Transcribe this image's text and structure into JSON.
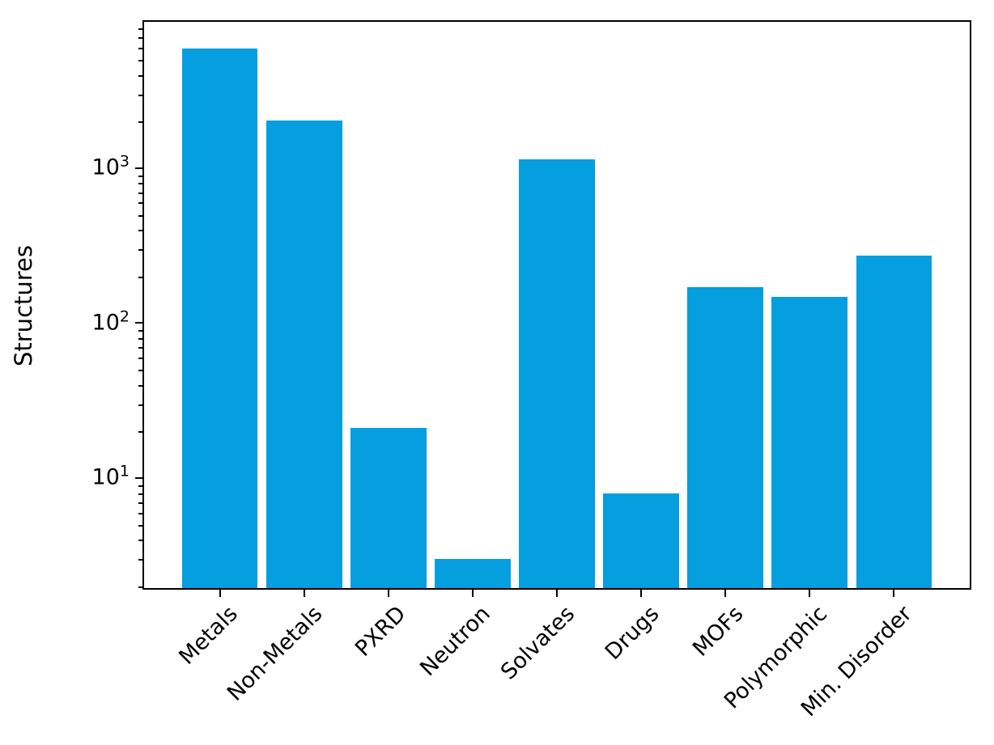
{
  "chart_data": {
    "type": "bar",
    "title": "",
    "xlabel": "",
    "ylabel": "Structures",
    "categories": [
      "Metals",
      "Non-Metals",
      "PXRD",
      "Neutron",
      "Solvates",
      "Drugs",
      "MOFs",
      "Polymorphic",
      "Min. Disorder"
    ],
    "values": [
      5900,
      2030,
      21,
      3,
      1140,
      8,
      170,
      147,
      272
    ],
    "yscale": "log",
    "ylim": [
      1.95,
      8800
    ],
    "xlim": [
      -0.9,
      8.9
    ],
    "bar_width": 0.9,
    "bar_color": "#059EDF",
    "background_color": "#FFFFFF",
    "axis_color": "#000000",
    "grid": false,
    "legend": null,
    "yticks": [
      {
        "base": "10",
        "exp": "1",
        "value": 10
      },
      {
        "base": "10",
        "exp": "2",
        "value": 100
      },
      {
        "base": "10",
        "exp": "3",
        "value": 1000
      }
    ],
    "x_tick_label_rotation_deg": 45
  }
}
